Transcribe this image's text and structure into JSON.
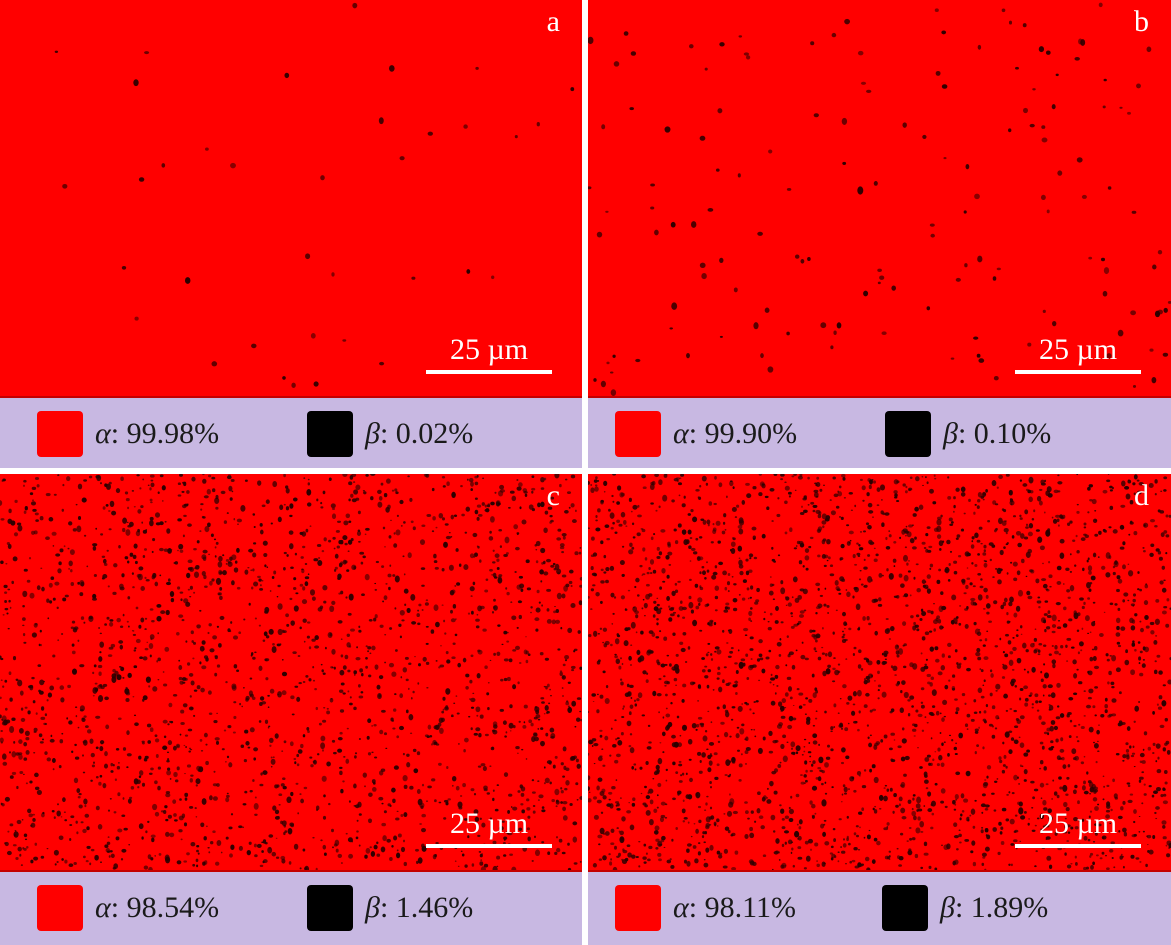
{
  "colors": {
    "alpha": "#ff0000",
    "beta": "#000000",
    "legend_bg": "#c8b8e2",
    "divider": "#ffffff"
  },
  "panels": [
    {
      "label": "a",
      "scale": "25 µm",
      "alpha_symbol": "α",
      "alpha_value": ": 99.98%",
      "beta_symbol": "β",
      "beta_value": ": 0.02%",
      "beta_fraction": 0.02
    },
    {
      "label": "b",
      "scale": "25 µm",
      "alpha_symbol": "α",
      "alpha_value": ": 99.90%",
      "beta_symbol": "β",
      "beta_value": ": 0.10%",
      "beta_fraction": 0.1
    },
    {
      "label": "c",
      "scale": "25 µm",
      "alpha_symbol": "α",
      "alpha_value": ": 98.54%",
      "beta_symbol": "β",
      "beta_value": ": 1.46%",
      "beta_fraction": 1.46
    },
    {
      "label": "d",
      "scale": "25 µm",
      "alpha_symbol": "α",
      "alpha_value": ": 98.11%",
      "beta_symbol": "β",
      "beta_value": ": 1.89%",
      "beta_fraction": 1.89
    }
  ]
}
